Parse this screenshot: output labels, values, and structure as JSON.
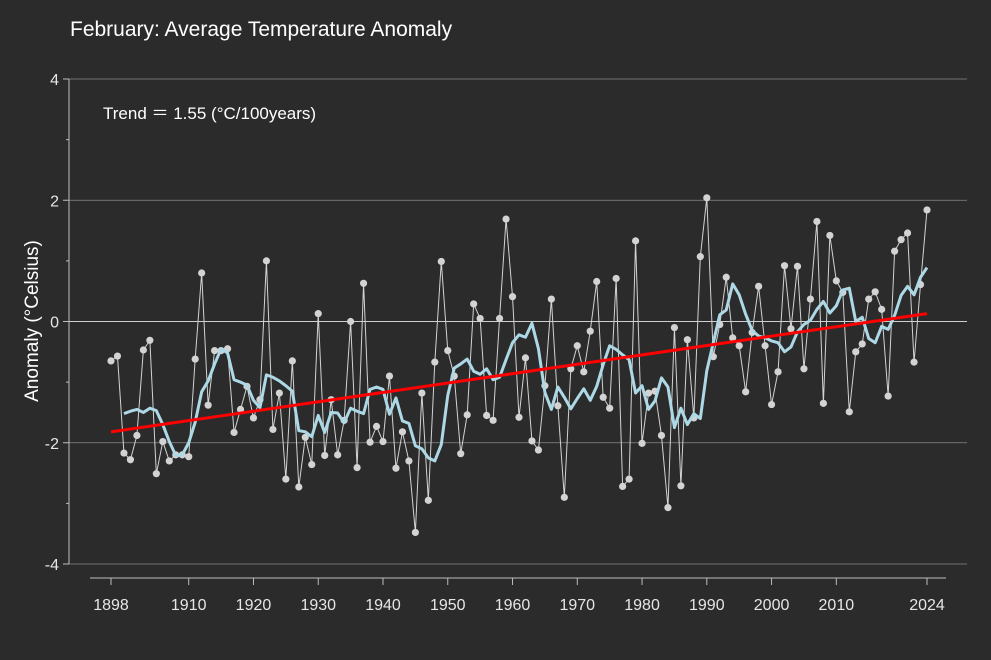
{
  "chart_data": {
    "type": "line",
    "title": "February: Average Temperature Anomaly",
    "ylabel": "Anomaly (°Celsius)",
    "xlabel": "",
    "annotation": "Trend ＝ 1.55 (°C/100years)",
    "xlim": [
      1898,
      2024
    ],
    "ylim": [
      -4,
      4
    ],
    "x_ticks": [
      1898,
      1910,
      1920,
      1930,
      1940,
      1950,
      1960,
      1970,
      1980,
      1990,
      2000,
      2010,
      2024
    ],
    "y_ticks": [
      -4,
      -2,
      0,
      2,
      4
    ],
    "grid": true,
    "legend": "none",
    "colors": {
      "background": "#2b2b2b",
      "grid": "#8a8a8a",
      "zero_line": "#d0d0d0",
      "annual": "#d3d3d3",
      "moving_average": "#add8e6",
      "trend": "#ff0000"
    },
    "series": [
      {
        "kind": "annual",
        "x_start": 1898,
        "values": [
          -0.65,
          -0.57,
          -2.17,
          -2.28,
          -1.88,
          -0.47,
          -0.31,
          -2.51,
          -1.98,
          -2.3,
          -2.2,
          -2.2,
          -2.23,
          -0.62,
          0.8,
          -1.38,
          -0.48,
          -0.48,
          -0.45,
          -1.83,
          -1.45,
          -1.07,
          -1.59,
          -1.29,
          1.0,
          -1.78,
          -1.18,
          -2.6,
          -0.65,
          -2.73,
          -1.91,
          -2.36,
          0.13,
          -2.21,
          -1.29,
          -2.2,
          -1.63,
          0.0,
          -2.41,
          0.63,
          -1.99,
          -1.73,
          -1.98,
          -0.9,
          -2.42,
          -1.82,
          -2.3,
          -3.48,
          -1.18,
          -2.95,
          -0.67,
          0.99,
          -0.48,
          -0.9,
          -2.18,
          -1.54,
          0.29,
          0.05,
          -1.55,
          -1.63,
          0.05,
          1.69,
          0.41,
          -1.58,
          -0.6,
          -1.97,
          -2.12,
          -1.06,
          0.37,
          -1.39,
          -2.9,
          -0.78,
          -0.4,
          -0.83,
          -0.16,
          0.66,
          -1.25,
          -1.43,
          0.71,
          -2.72,
          -2.6,
          1.33,
          -2.01,
          -1.18,
          -1.15,
          -1.88,
          -3.07,
          -0.1,
          -2.71,
          -0.3,
          -1.59,
          1.07,
          2.04,
          -0.58,
          -0.05,
          0.73,
          -0.27,
          -0.4,
          -1.16,
          -0.18,
          0.58,
          -0.4,
          -1.37,
          -0.83,
          0.92,
          -0.12,
          0.91,
          -0.78,
          0.37,
          1.65,
          -1.35,
          1.42,
          0.67,
          0.48,
          -1.49,
          -0.5,
          -0.37,
          0.37,
          0.49,
          0.2,
          -1.23,
          1.16,
          1.35,
          1.46,
          -0.67,
          0.61,
          1.84
        ]
      },
      {
        "kind": "moving_average",
        "x_start": 1900,
        "values": [
          -1.52,
          -1.48,
          -1.45,
          -1.5,
          -1.43,
          -1.47,
          -1.7,
          -1.98,
          -2.21,
          -2.2,
          -2.0,
          -1.66,
          -1.16,
          -0.98,
          -0.7,
          -0.45,
          -0.52,
          -0.96,
          -1.0,
          -1.05,
          -1.3,
          -1.42,
          -0.88,
          -0.92,
          -0.98,
          -1.06,
          -1.15,
          -1.8,
          -1.82,
          -1.9,
          -1.55,
          -1.83,
          -1.5,
          -1.51,
          -1.67,
          -1.43,
          -1.48,
          -1.52,
          -1.12,
          -1.08,
          -1.12,
          -1.53,
          -1.26,
          -1.64,
          -1.68,
          -2.05,
          -2.1,
          -2.25,
          -2.3,
          -2.03,
          -1.22,
          -0.77,
          -0.7,
          -0.62,
          -0.82,
          -0.87,
          -0.78,
          -0.96,
          -0.92,
          -0.63,
          -0.35,
          -0.22,
          -0.26,
          -0.03,
          -0.45,
          -1.17,
          -1.45,
          -1.08,
          -1.25,
          -1.44,
          -1.27,
          -1.11,
          -1.3,
          -1.07,
          -0.71,
          -0.4,
          -0.46,
          -0.55,
          -0.63,
          -1.18,
          -1.06,
          -1.45,
          -1.31,
          -0.93,
          -1.08,
          -1.75,
          -1.43,
          -1.7,
          -1.52,
          -1.6,
          -0.81,
          -0.35,
          0.11,
          0.19,
          0.62,
          0.44,
          0.12,
          -0.15,
          -0.24,
          -0.27,
          -0.32,
          -0.35,
          -0.5,
          -0.42,
          -0.17,
          -0.05,
          0.02,
          0.2,
          0.33,
          0.14,
          0.26,
          0.52,
          0.55,
          0.0,
          0.07,
          -0.28,
          -0.35,
          -0.08,
          -0.13,
          0.1,
          0.43,
          0.58,
          0.44,
          0.73,
          0.89
        ]
      },
      {
        "kind": "trend",
        "x": [
          1898,
          2024
        ],
        "y": [
          -1.82,
          0.13
        ]
      }
    ]
  }
}
